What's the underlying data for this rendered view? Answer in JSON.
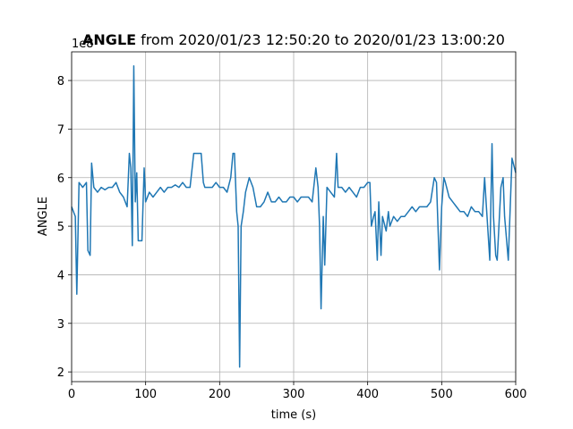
{
  "chart_data": {
    "type": "line",
    "title_bold": "ANGLE",
    "title": "from 2020/01/23 12:50:20 to 2020/01/23 13:00:20",
    "y_offset_label": "1e8",
    "xlabel": "time (s)",
    "ylabel": "ANGLE",
    "xlim": [
      0,
      600
    ],
    "xticks": [
      0,
      100,
      200,
      300,
      400,
      500,
      600
    ],
    "ylim": [
      1.8,
      8.59
    ],
    "yticks": [
      2,
      3,
      4,
      5,
      6,
      7,
      8
    ],
    "grid": true,
    "x": [
      0,
      5,
      7,
      10,
      15,
      20,
      22,
      25,
      27,
      30,
      35,
      40,
      45,
      50,
      55,
      60,
      65,
      70,
      75,
      78,
      80,
      82,
      84,
      86,
      88,
      90,
      95,
      98,
      100,
      105,
      110,
      115,
      120,
      125,
      130,
      135,
      140,
      145,
      150,
      155,
      160,
      165,
      170,
      175,
      178,
      180,
      185,
      190,
      195,
      200,
      205,
      210,
      215,
      218,
      220,
      223,
      225,
      227,
      229,
      232,
      235,
      240,
      245,
      250,
      255,
      260,
      265,
      270,
      275,
      280,
      285,
      290,
      295,
      300,
      305,
      310,
      315,
      320,
      325,
      330,
      333,
      335,
      337,
      340,
      342,
      345,
      350,
      355,
      358,
      360,
      365,
      370,
      375,
      380,
      385,
      390,
      395,
      400,
      403,
      405,
      408,
      410,
      413,
      415,
      418,
      420,
      425,
      428,
      430,
      435,
      440,
      445,
      450,
      455,
      460,
      465,
      470,
      475,
      480,
      485,
      490,
      493,
      495,
      497,
      500,
      503,
      505,
      510,
      515,
      520,
      525,
      530,
      535,
      540,
      545,
      550,
      555,
      558,
      560,
      565,
      568,
      570,
      573,
      575,
      580,
      583,
      585,
      590,
      595,
      600
    ],
    "series": [
      {
        "name": "ANGLE",
        "color": "#1f77b4",
        "values": [
          5.4,
          5.2,
          3.6,
          5.9,
          5.8,
          5.9,
          4.5,
          4.4,
          6.3,
          5.8,
          5.7,
          5.8,
          5.75,
          5.8,
          5.8,
          5.9,
          5.7,
          5.6,
          5.4,
          6.5,
          6.2,
          4.6,
          8.3,
          5.5,
          6.1,
          4.7,
          4.7,
          6.2,
          5.5,
          5.7,
          5.6,
          5.7,
          5.8,
          5.7,
          5.8,
          5.8,
          5.85,
          5.8,
          5.9,
          5.8,
          5.8,
          6.5,
          6.5,
          6.5,
          5.9,
          5.8,
          5.8,
          5.8,
          5.9,
          5.8,
          5.8,
          5.7,
          6.0,
          6.5,
          6.5,
          5.3,
          5.0,
          2.1,
          5.0,
          5.3,
          5.7,
          6.0,
          5.8,
          5.4,
          5.4,
          5.5,
          5.7,
          5.5,
          5.5,
          5.6,
          5.5,
          5.5,
          5.6,
          5.6,
          5.5,
          5.6,
          5.6,
          5.6,
          5.5,
          6.2,
          5.8,
          5.0,
          3.3,
          5.2,
          4.2,
          5.8,
          5.7,
          5.6,
          6.5,
          5.8,
          5.8,
          5.7,
          5.8,
          5.7,
          5.6,
          5.8,
          5.8,
          5.9,
          5.9,
          5.0,
          5.2,
          5.3,
          4.3,
          5.5,
          4.4,
          5.2,
          4.9,
          5.3,
          5.0,
          5.2,
          5.1,
          5.2,
          5.2,
          5.3,
          5.4,
          5.3,
          5.4,
          5.4,
          5.4,
          5.5,
          6.0,
          5.9,
          5.0,
          4.1,
          5.4,
          6.0,
          5.9,
          5.6,
          5.5,
          5.4,
          5.3,
          5.3,
          5.2,
          5.4,
          5.3,
          5.3,
          5.2,
          6.0,
          5.5,
          4.3,
          6.7,
          5.2,
          4.4,
          4.3,
          5.8,
          6.0,
          5.2,
          4.3,
          6.4,
          6.1
        ]
      }
    ]
  }
}
